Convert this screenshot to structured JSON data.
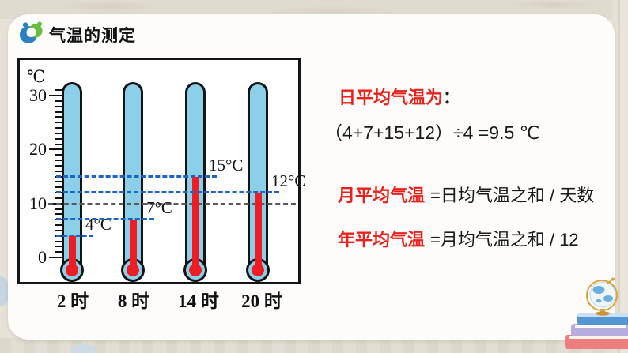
{
  "header": {
    "title": "气温的测定"
  },
  "chart_data": {
    "type": "bar",
    "title": "气温的测定",
    "categories": [
      "2 时",
      "8 时",
      "14 时",
      "20 时"
    ],
    "values": [
      4,
      7,
      15,
      12
    ],
    "point_labels": [
      "4°C",
      "7°C",
      "15°C",
      "12°C"
    ],
    "xlabel": "",
    "ylabel": "℃",
    "ylim": [
      0,
      32
    ],
    "yticks": [
      0,
      10,
      20,
      30
    ],
    "reference_line_y": 10,
    "grid": false,
    "legend": "none"
  },
  "panel": {
    "daily_label": "日平均气温为",
    "daily_colon": "：",
    "daily_formula": "（4+7+15+12）÷4 =9.5 ℃",
    "monthly_term": "月平均气温",
    "monthly_def": "=日均气温之和 / 天数",
    "yearly_term": "年平均气温",
    "yearly_def": "=月均气温之和 / 12"
  },
  "colors": {
    "accent_red": "#e8221c",
    "thermometer_fill": "#8bd0e8",
    "mercury_red": "#ee1c23",
    "guide_dash_blue": "#1a66c8",
    "reference_gray": "#5a5a5a"
  },
  "icons": {
    "logo": "blue-green-swirl-figures",
    "corner": "globe-on-book-stack"
  }
}
